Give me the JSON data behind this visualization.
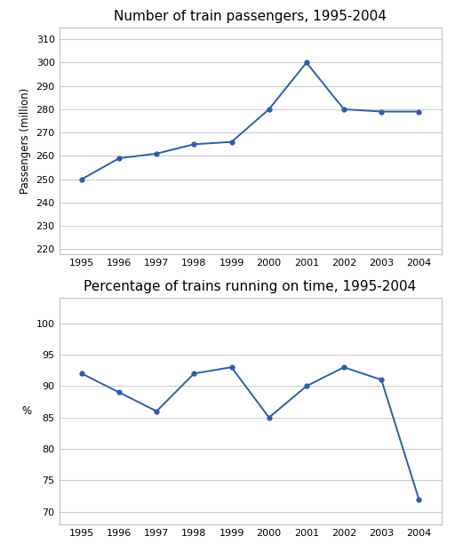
{
  "years": [
    1995,
    1996,
    1997,
    1998,
    1999,
    2000,
    2001,
    2002,
    2003,
    2004
  ],
  "passengers": [
    250,
    259,
    261,
    265,
    266,
    280,
    300,
    280,
    279,
    279
  ],
  "pct_on_time": [
    92,
    89,
    86,
    92,
    93,
    85,
    90,
    93,
    91,
    72
  ],
  "chart1_title": "Number of train passengers, 1995-2004",
  "chart2_title": "Percentage of trains running on time, 1995-2004",
  "chart1_ylabel": "Passengers (million)",
  "chart2_ylabel": "%",
  "chart1_ylim": [
    218,
    315
  ],
  "chart1_yticks": [
    220,
    230,
    240,
    250,
    260,
    270,
    280,
    290,
    300,
    310
  ],
  "chart2_ylim": [
    68,
    104
  ],
  "chart2_yticks": [
    70,
    75,
    80,
    85,
    90,
    95,
    100
  ],
  "line_color": "#2e5fa3",
  "marker": "o",
  "marker_size": 3.5,
  "line_width": 1.4,
  "bg_color": "#ffffff",
  "grid_color": "#c8c8c8",
  "box_color": "#c0c0c0",
  "title_fontsize": 11,
  "label_fontsize": 8.5,
  "tick_fontsize": 8
}
